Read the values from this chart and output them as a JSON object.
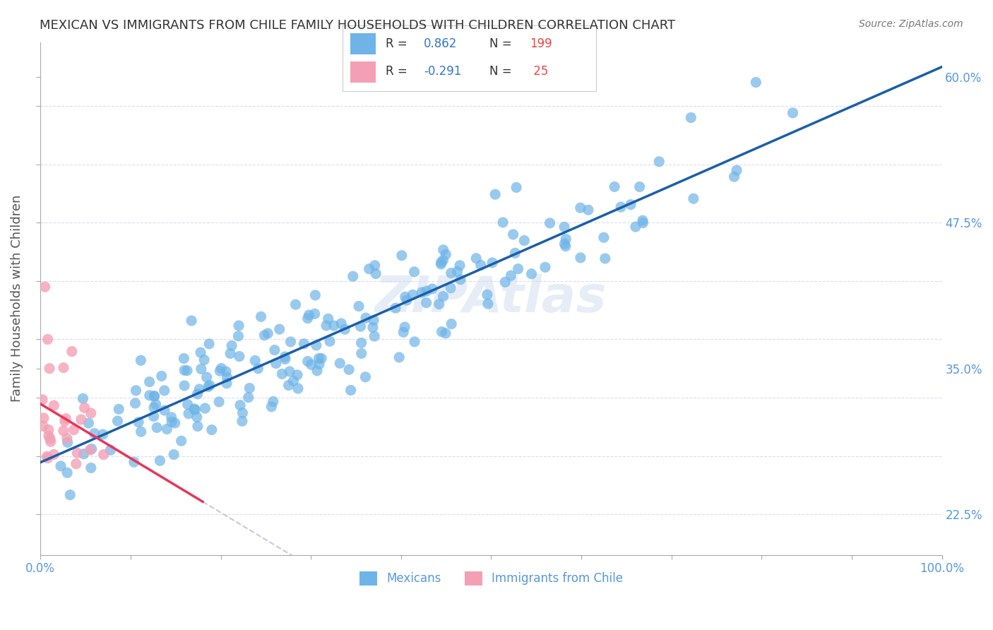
{
  "title": "MEXICAN VS IMMIGRANTS FROM CHILE FAMILY HOUSEHOLDS WITH CHILDREN CORRELATION CHART",
  "source": "Source: ZipAtlas.com",
  "ylabel": "Family Households with Children",
  "xlim": [
    0,
    1.0
  ],
  "ylim": [
    0.19,
    0.63
  ],
  "blue_R": 0.862,
  "blue_N": 199,
  "pink_R": -0.291,
  "pink_N": 25,
  "blue_color": "#6eb4e8",
  "pink_color": "#f4a0b4",
  "blue_line_color": "#1a5fa8",
  "pink_line_color": "#e8365a",
  "dashed_line_color": "#c8c8d8",
  "legend_label_blue": "Mexicans",
  "legend_label_pink": "Immigrants from Chile",
  "watermark": "ZIPAtlas",
  "background_color": "#ffffff",
  "grid_color": "#ddddee",
  "title_color": "#333333",
  "axis_label_color": "#555555",
  "tick_label_color": "#5599dd",
  "legend_R_color": "#3377cc",
  "legend_N_color": "#ee4444"
}
